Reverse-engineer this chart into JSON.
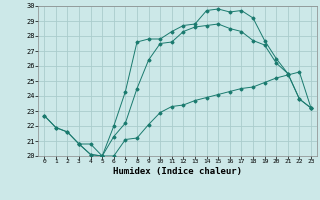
{
  "xlabel": "Humidex (Indice chaleur)",
  "bg_color": "#cce8e8",
  "grid_color": "#aacccc",
  "line_color": "#1a7a6e",
  "xlim": [
    -0.5,
    23.5
  ],
  "ylim": [
    20,
    30
  ],
  "xticks": [
    0,
    1,
    2,
    3,
    4,
    5,
    6,
    7,
    8,
    9,
    10,
    11,
    12,
    13,
    14,
    15,
    16,
    17,
    18,
    19,
    20,
    21,
    22,
    23
  ],
  "yticks": [
    20,
    21,
    22,
    23,
    24,
    25,
    26,
    27,
    28,
    29,
    30
  ],
  "line1_x": [
    0,
    1,
    2,
    3,
    4,
    5,
    6,
    7,
    8,
    9,
    10,
    11,
    12,
    13,
    14,
    15,
    16,
    17,
    18,
    19,
    20,
    21,
    22,
    23
  ],
  "line1_y": [
    22.7,
    21.9,
    21.6,
    20.8,
    20.1,
    20.0,
    20.0,
    21.1,
    21.2,
    22.1,
    22.9,
    23.3,
    23.4,
    23.7,
    23.9,
    24.1,
    24.3,
    24.5,
    24.6,
    24.9,
    25.2,
    25.4,
    25.6,
    23.2
  ],
  "line2_x": [
    0,
    1,
    2,
    3,
    4,
    5,
    6,
    7,
    8,
    9,
    10,
    11,
    12,
    13,
    14,
    15,
    16,
    17,
    18,
    19,
    20,
    21,
    22,
    23
  ],
  "line2_y": [
    22.7,
    21.9,
    21.6,
    20.8,
    20.1,
    20.0,
    21.3,
    22.2,
    24.5,
    26.4,
    27.5,
    27.6,
    28.3,
    28.6,
    28.7,
    28.8,
    28.5,
    28.3,
    27.7,
    27.4,
    26.2,
    25.5,
    23.8,
    23.2
  ],
  "line3_x": [
    3,
    4,
    5,
    6,
    7,
    8,
    9,
    10,
    11,
    12,
    13,
    14,
    15,
    16,
    17,
    18,
    19,
    20,
    21,
    22,
    23
  ],
  "line3_y": [
    20.8,
    20.8,
    20.0,
    22.0,
    24.3,
    27.6,
    27.8,
    27.8,
    28.3,
    28.7,
    28.8,
    29.7,
    29.8,
    29.6,
    29.7,
    29.2,
    27.7,
    26.5,
    25.5,
    23.8,
    23.2
  ]
}
